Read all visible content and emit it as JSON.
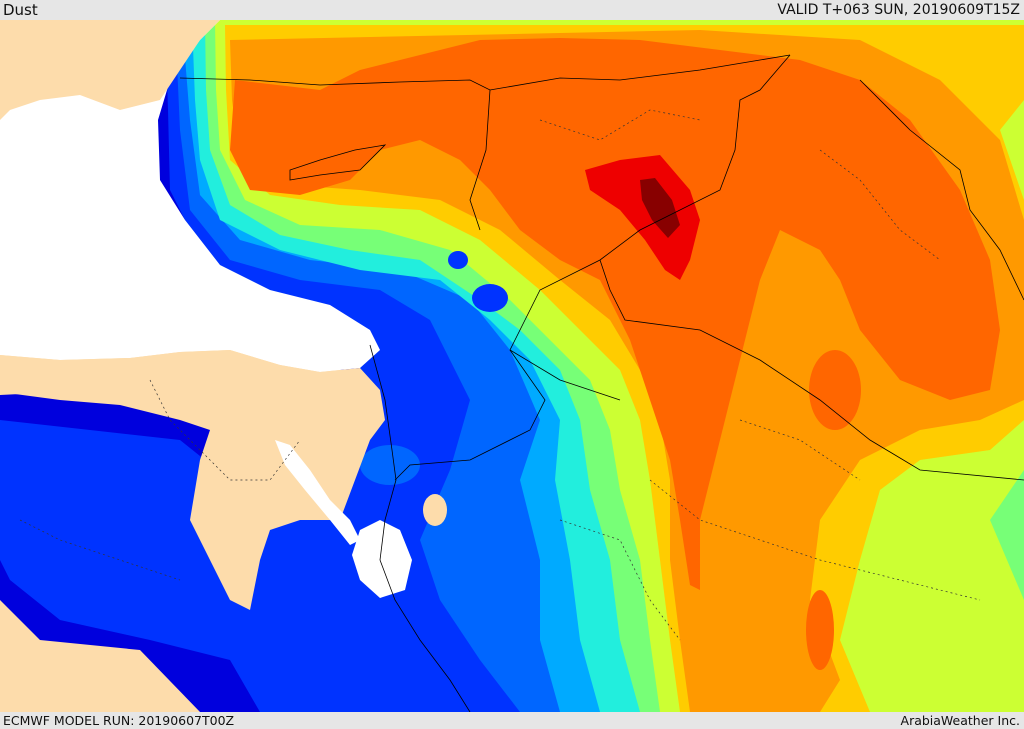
{
  "header": {
    "title": "Dust",
    "valid": "VALID T+063 SUN, 20190609T15Z"
  },
  "footer": {
    "model_run": "ECMWF MODEL RUN: 20190607T00Z",
    "credit": "ArabiaWeather Inc."
  },
  "colors": {
    "land": "#fddcab",
    "water": "#ffffff",
    "level_1": "#0000dd",
    "level_2": "#0033ff",
    "level_3": "#0066ff",
    "level_4": "#00aaff",
    "level_5": "#22eedd",
    "level_6": "#77ff77",
    "level_7": "#ccff33",
    "level_8": "#ffcc00",
    "level_9": "#ff9900",
    "level_10": "#ff6600",
    "level_11": "#ee0000",
    "level_12": "#880000"
  }
}
